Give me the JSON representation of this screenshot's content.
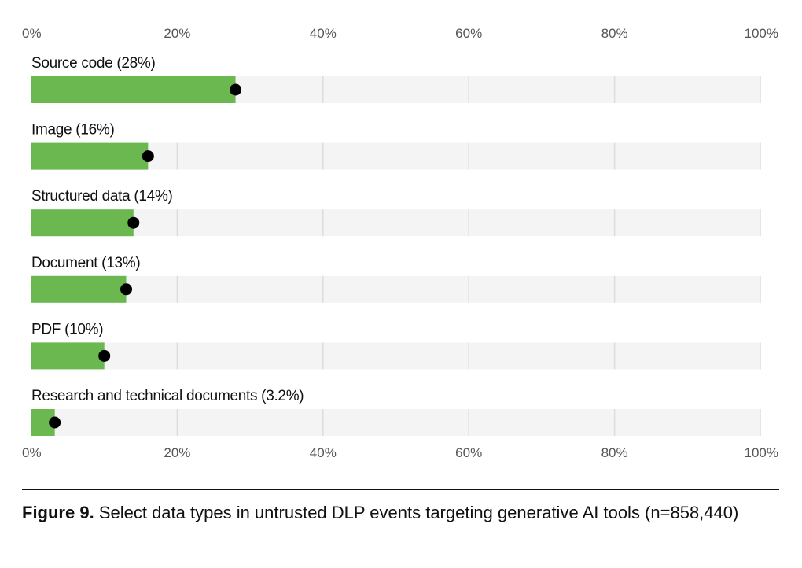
{
  "chart_data": {
    "type": "bar",
    "orientation": "horizontal",
    "categories": [
      "Source code (28%)",
      "Image (16%)",
      "Structured data (14%)",
      "Document (13%)",
      "PDF (10%)",
      "Research and technical documents (3.2%)"
    ],
    "values": [
      28,
      16,
      14,
      13,
      10,
      3.2
    ],
    "xlim": [
      0,
      100
    ],
    "xticks": [
      "0%",
      "20%",
      "40%",
      "60%",
      "80%",
      "100%"
    ],
    "grid": true,
    "colors": {
      "bar": "#6ab84f",
      "track": "#f4f4f4",
      "marker": "#000000",
      "grid": "#dcdcdc"
    }
  },
  "caption": {
    "label": "Figure 9.",
    "text": "Select data types in untrusted DLP events targeting generative AI tools (n=858,440)"
  }
}
